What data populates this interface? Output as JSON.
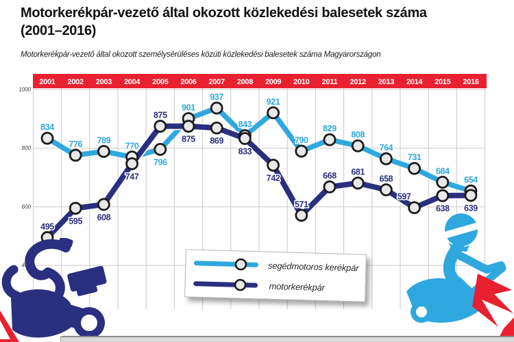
{
  "header": {
    "title": "Motorkerékpár-vezető által okozott közlekedési balesetek száma (2001–2016)",
    "subtitle": "Motorkerékpár-vezető által okozott személysérüléses közúti közlekedési balesetek száma Magyarországon"
  },
  "chart_data": {
    "type": "line",
    "categories": [
      "2001",
      "2002",
      "2003",
      "2004",
      "2005",
      "2006",
      "2007",
      "2008",
      "2009",
      "2010",
      "2011",
      "2012",
      "2013",
      "2014",
      "2015",
      "2016"
    ],
    "series": [
      {
        "name": "segédmotoros kerékpár",
        "color": "#2EA8DF",
        "values": [
          834,
          776,
          789,
          770,
          796,
          901,
          937,
          843,
          921,
          790,
          829,
          808,
          764,
          731,
          684,
          654
        ],
        "label_side": [
          "above",
          "above",
          "above",
          "above",
          "below",
          "above",
          "above",
          "above",
          "above",
          "above",
          "above",
          "above",
          "above",
          "above",
          "above",
          "above"
        ]
      },
      {
        "name": "motorkerékpár",
        "color": "#2B2F80",
        "values": [
          495,
          595,
          608,
          747,
          875,
          875,
          869,
          833,
          742,
          571,
          668,
          681,
          658,
          597,
          638,
          639
        ],
        "label_side": [
          "above",
          "below",
          "below",
          "below",
          "above",
          "below",
          "below",
          "below",
          "below",
          "above",
          "above",
          "above",
          "above",
          "above-left",
          "below",
          "below"
        ]
      }
    ],
    "title": "",
    "xlabel": "",
    "ylabel": "",
    "ylim": [
      400,
      1000
    ],
    "yticks": [
      1000,
      800,
      600,
      400
    ],
    "grid": true,
    "legend_position": "bottom-center",
    "header_band_color": "#E8202F",
    "year_label_color": "#FFFFFF",
    "gridline_color": "#C9C9C9",
    "axis_label_color": "#3a3a3a",
    "marker_fill": "#E8E8E8",
    "marker_stroke": "#1B1B1B"
  },
  "legend": {
    "items": [
      {
        "label": "segédmotoros kerékpár",
        "color": "#2EA8DF"
      },
      {
        "label": "motorkerékpár",
        "color": "#2B2F80"
      }
    ]
  },
  "decor": {
    "navy": "#2B2F80",
    "light_blue": "#2EA8DF",
    "accent_red": "#E8202F",
    "left_illustration": "motorcycle-crash",
    "right_illustration": "scooter-crash"
  }
}
